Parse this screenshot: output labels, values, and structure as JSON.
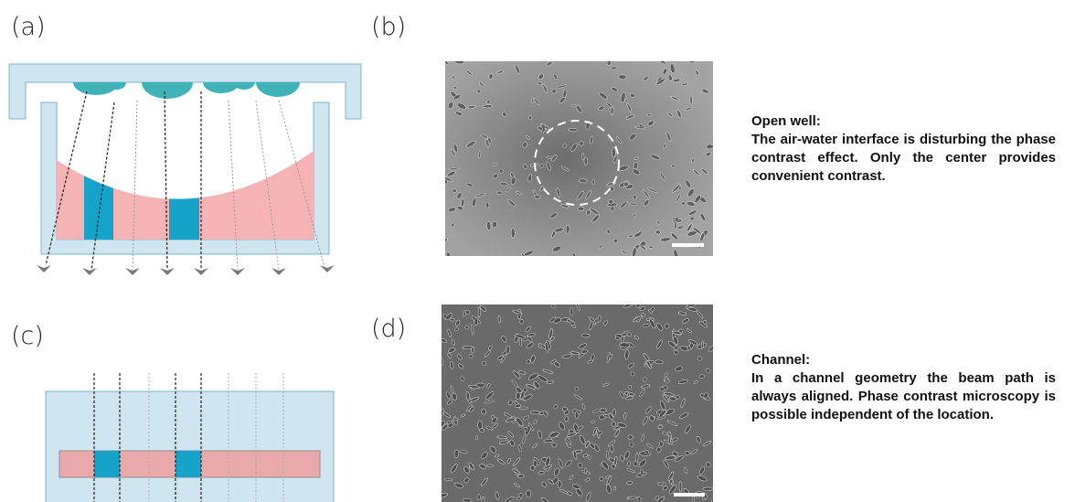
{
  "panels": {
    "a": "(a)",
    "b": "(b)",
    "c": "(c)",
    "d": "(d)"
  },
  "descriptions": [
    {
      "title": "Open well:",
      "text": "The air-water interface is disturbing the phase contrast effect. Only the center provides convenient contrast."
    },
    {
      "title": "Channel:",
      "text": "In a channel geometry the beam path is always aligned. Phase contrast microscopy is possible independent of the location."
    }
  ]
}
